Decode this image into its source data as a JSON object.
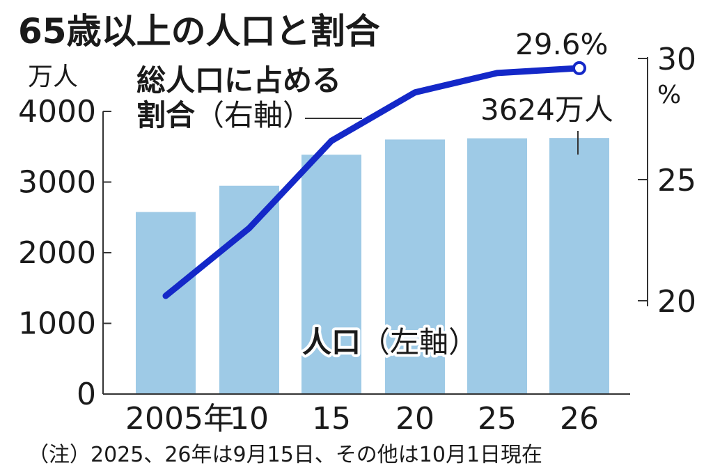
{
  "chart_data": {
    "type": "bar",
    "title": "65歳以上の人口と割合",
    "categories": [
      "2005年",
      "10",
      "15",
      "20",
      "25",
      "26"
    ],
    "left_axis": {
      "unit": "万人",
      "ticks": [
        "0",
        "1000",
        "2000",
        "3000",
        "4000"
      ],
      "range": [
        0,
        4000
      ]
    },
    "right_axis": {
      "unit": "%",
      "ticks": [
        "20",
        "25",
        "30"
      ],
      "range": [
        20,
        30
      ]
    },
    "series": [
      {
        "name": "人口（左軸）",
        "name_main": "人口",
        "name_sub": "（左軸）",
        "type": "bar",
        "axis": "left",
        "color": "#9ecae6",
        "values": [
          2576,
          2948,
          3387,
          3602,
          3619,
          3624
        ]
      },
      {
        "name": "総人口に占める割合（右軸）",
        "name_line1": "総人口に占める",
        "name_line2_main": "割合",
        "name_line2_sub": "（右軸）",
        "type": "line",
        "axis": "right",
        "color": "#1428c8",
        "values": [
          20.2,
          23.0,
          26.6,
          28.6,
          29.4,
          29.6
        ]
      }
    ],
    "annotations": {
      "last_bar": "3624万人",
      "last_point": "29.6%"
    },
    "note": "（注）2025、26年は9月15日、その他は10月1日現在"
  }
}
